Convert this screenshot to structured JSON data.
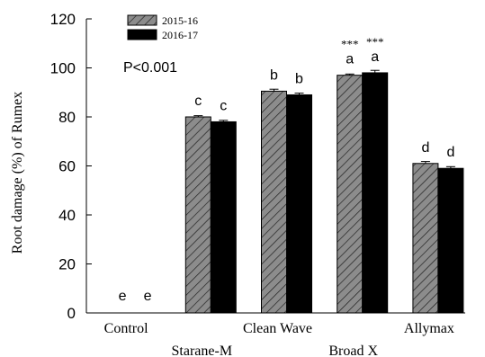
{
  "chart_data": {
    "type": "bar",
    "categories": [
      "Control",
      "Starane-M",
      "Clean Wave",
      "Broad X",
      "Allymax"
    ],
    "series": [
      {
        "name": "2015-16",
        "values": [
          0,
          80,
          90.5,
          97,
          61
        ],
        "errors": [
          0,
          0.5,
          0.8,
          0.5,
          0.8
        ],
        "letters": [
          "e",
          "c",
          "b",
          "a",
          "d"
        ],
        "stars": [
          "",
          "",
          "",
          "***",
          ""
        ],
        "pattern": "hatched-gray"
      },
      {
        "name": "2016-17",
        "values": [
          0,
          78,
          89,
          98,
          59
        ],
        "errors": [
          0,
          0.6,
          0.7,
          1.0,
          0.7
        ],
        "letters": [
          "e",
          "c",
          "b",
          "a",
          "d"
        ],
        "stars": [
          "",
          "",
          "",
          "***",
          ""
        ],
        "pattern": "solid-black"
      }
    ],
    "ylabel": "Root damage (%) of Rumex",
    "xlabel": "",
    "ylim": [
      0,
      120
    ],
    "yticks": [
      0,
      20,
      40,
      60,
      80,
      100,
      120
    ],
    "annotation": "P<0.001",
    "legend_position": "top-left",
    "grid": false
  }
}
